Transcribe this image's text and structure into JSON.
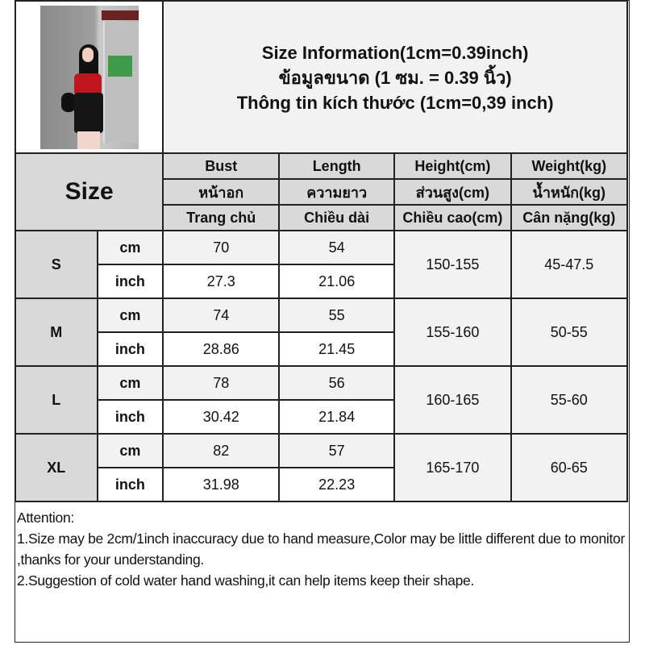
{
  "title": {
    "line1": "Size Information(1cm=0.39inch)",
    "line2": "ข้อมูลขนาด (1 ซม. = 0.39 นิ้ว)",
    "line3": "Thông tin kích thước (1cm=0,39 inch)"
  },
  "photo": {
    "icon": "model-photo",
    "description_colors": {
      "top": "#c0141e",
      "overall": "#151515"
    }
  },
  "header": {
    "size_label": "Size",
    "columns": [
      {
        "en": "Bust",
        "th": "หน้าอก",
        "vi": "Trang chủ"
      },
      {
        "en": "Length",
        "th": "ความยาว",
        "vi": "Chiều dài"
      },
      {
        "en": "Height(cm)",
        "th": "ส่วนสูง(cm)",
        "vi": "Chiều cao(cm)"
      },
      {
        "en": "Weight(kg)",
        "th": "น้ำหนัก(kg)",
        "vi": "Cân nặng(kg)"
      }
    ]
  },
  "units": {
    "cm": "cm",
    "inch": "inch"
  },
  "sizes": [
    {
      "size": "S",
      "bust_cm": "70",
      "length_cm": "54",
      "bust_inch": "27.3",
      "length_inch": "21.06",
      "height": "150-155",
      "weight": "45-47.5"
    },
    {
      "size": "M",
      "bust_cm": "74",
      "length_cm": "55",
      "bust_inch": "28.86",
      "length_inch": "21.45",
      "height": "155-160",
      "weight": "50-55"
    },
    {
      "size": "L",
      "bust_cm": "78",
      "length_cm": "56",
      "bust_inch": "30.42",
      "length_inch": "21.84",
      "height": "160-165",
      "weight": "55-60"
    },
    {
      "size": "XL",
      "bust_cm": "82",
      "length_cm": "57",
      "bust_inch": "31.98",
      "length_inch": "22.23",
      "height": "165-170",
      "weight": "60-65"
    }
  ],
  "notes": {
    "heading": "Attention:",
    "item1": "1.Size may be 2cm/1inch inaccuracy due to hand measure,Color may be little different due to monitor ,thanks for your understanding.",
    "item2": "2.Suggestion of cold water hand washing,it can help items keep their shape."
  },
  "colors": {
    "header_bg": "#d9d9d9",
    "cm_row_bg": "#f2f2f2",
    "border": "#222222"
  }
}
